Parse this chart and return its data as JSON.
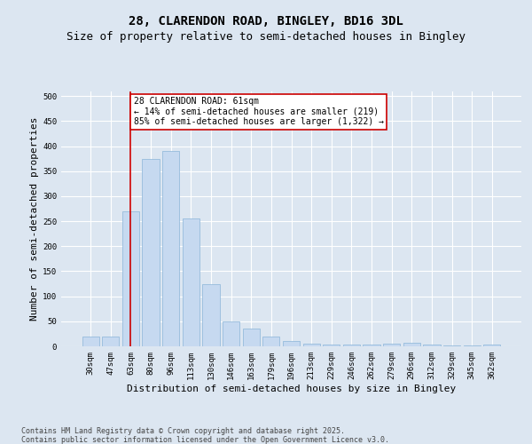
{
  "title1": "28, CLARENDON ROAD, BINGLEY, BD16 3DL",
  "title2": "Size of property relative to semi-detached houses in Bingley",
  "xlabel": "Distribution of semi-detached houses by size in Bingley",
  "ylabel": "Number of semi-detached properties",
  "categories": [
    "30sqm",
    "47sqm",
    "63sqm",
    "80sqm",
    "96sqm",
    "113sqm",
    "130sqm",
    "146sqm",
    "163sqm",
    "179sqm",
    "196sqm",
    "213sqm",
    "229sqm",
    "246sqm",
    "262sqm",
    "279sqm",
    "296sqm",
    "312sqm",
    "329sqm",
    "345sqm",
    "362sqm"
  ],
  "values": [
    20,
    20,
    270,
    375,
    390,
    255,
    125,
    50,
    35,
    20,
    10,
    6,
    4,
    3,
    3,
    6,
    7,
    3,
    1,
    1,
    3
  ],
  "bar_color": "#c6d9f0",
  "bar_edge_color": "#8ab4d8",
  "vline_x_index": 2,
  "vline_color": "#cc0000",
  "annotation_title": "28 CLARENDON ROAD: 61sqm",
  "annotation_line1": "← 14% of semi-detached houses are smaller (219)",
  "annotation_line2": "85% of semi-detached houses are larger (1,322) →",
  "annotation_box_color": "#ffffff",
  "annotation_box_edge": "#cc0000",
  "ylim": [
    0,
    510
  ],
  "yticks": [
    0,
    50,
    100,
    150,
    200,
    250,
    300,
    350,
    400,
    450,
    500
  ],
  "footnote1": "Contains HM Land Registry data © Crown copyright and database right 2025.",
  "footnote2": "Contains public sector information licensed under the Open Government Licence v3.0.",
  "bg_color": "#dce6f1",
  "plot_bg_color": "#dce6f1",
  "title1_fontsize": 10,
  "title2_fontsize": 9,
  "tick_fontsize": 6.5,
  "ylabel_fontsize": 8,
  "xlabel_fontsize": 8,
  "footnote_fontsize": 6,
  "ann_fontsize": 7
}
